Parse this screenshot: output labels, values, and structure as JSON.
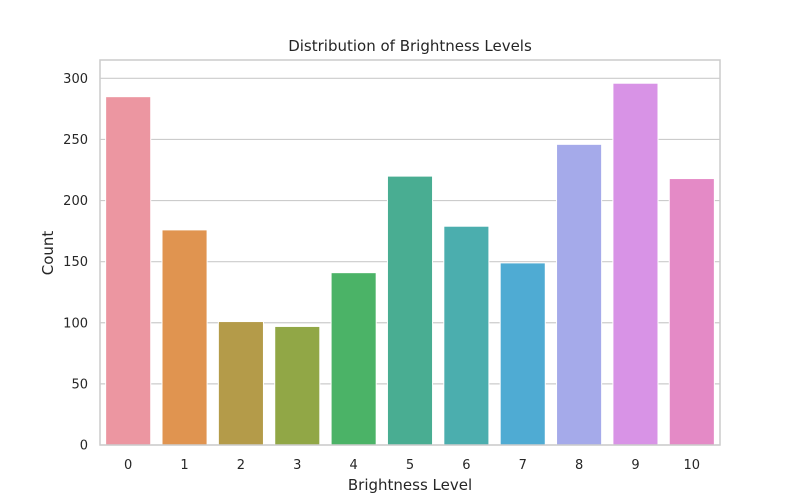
{
  "chart_data": {
    "type": "bar",
    "title": "Distribution of Brightness Levels",
    "xlabel": "Brightness Level",
    "ylabel": "Count",
    "categories": [
      "0",
      "1",
      "2",
      "3",
      "4",
      "5",
      "6",
      "7",
      "8",
      "9",
      "10"
    ],
    "values": [
      285,
      176,
      101,
      97,
      141,
      220,
      179,
      149,
      246,
      296,
      218
    ],
    "ylim": [
      0,
      315
    ],
    "yticks": [
      0,
      50,
      100,
      150,
      200,
      250,
      300
    ],
    "grid": true,
    "legend": "none",
    "colors": [
      "#ec96a1",
      "#e09450",
      "#b49b49",
      "#91a746",
      "#4bb367",
      "#49ad92",
      "#4baeae",
      "#4fabd3",
      "#a5aaea",
      "#d893e6",
      "#e48ac6"
    ],
    "style": {
      "background": "#ffffff",
      "grid_color": "#cccccc",
      "spine_color": "#cccccc",
      "bar_edge_color": "#ffffff",
      "text_color": "#262626"
    }
  }
}
